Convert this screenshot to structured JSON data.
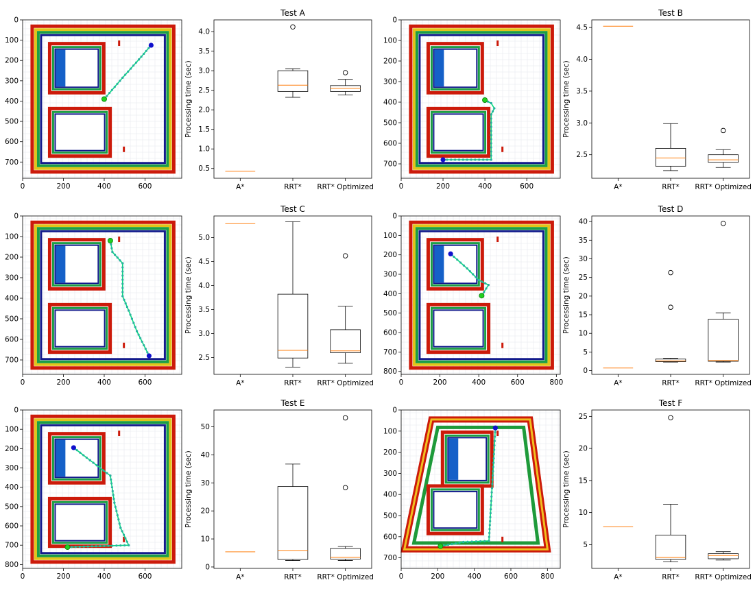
{
  "chart_data": [
    {
      "type": "box",
      "title": "Test A",
      "ylabel": "Processing time (sec)",
      "categories": [
        "A*",
        "RRT*",
        "RRT* Optimized"
      ],
      "ylim": [
        0.25,
        4.3
      ],
      "yticks": [
        0.5,
        1.0,
        1.5,
        2.0,
        2.5,
        3.0,
        3.5,
        4.0
      ],
      "ytick_labels": [
        "0.5",
        "1.0",
        "1.5",
        "2.0",
        "2.5",
        "3.0",
        "3.5",
        "4.0"
      ],
      "boxes": [
        {
          "min": 0.43,
          "q1": 0.43,
          "median": 0.43,
          "q3": 0.43,
          "max": 0.43,
          "outliers": []
        },
        {
          "min": 2.32,
          "q1": 2.47,
          "median": 2.63,
          "q3": 3.0,
          "max": 3.05,
          "outliers": [
            4.12
          ]
        },
        {
          "min": 2.38,
          "q1": 2.47,
          "median": 2.55,
          "q3": 2.62,
          "max": 2.78,
          "outliers": [
            2.95
          ]
        }
      ],
      "map": {
        "xticks": [
          0,
          200,
          400,
          600
        ],
        "yticks": [
          0,
          100,
          200,
          300,
          400,
          500,
          600,
          700
        ],
        "xlim": [
          0,
          780
        ],
        "ylim": [
          780,
          0
        ],
        "path": [
          [
            630,
            125
          ],
          [
            570,
            195
          ],
          [
            490,
            285
          ],
          [
            400,
            390
          ]
        ],
        "start": [
          630,
          125
        ],
        "goal": [
          400,
          390
        ]
      }
    },
    {
      "type": "box",
      "title": "Test B",
      "ylabel": "Processing time (sec)",
      "categories": [
        "A*",
        "RRT*",
        "RRT* Optimized"
      ],
      "ylim": [
        2.13,
        4.62
      ],
      "yticks": [
        2.5,
        3.0,
        3.5,
        4.0,
        4.5
      ],
      "ytick_labels": [
        "2.5",
        "3.0",
        "3.5",
        "4.0",
        "4.5"
      ],
      "boxes": [
        {
          "min": 4.52,
          "q1": 4.52,
          "median": 4.52,
          "q3": 4.52,
          "max": 4.52,
          "outliers": []
        },
        {
          "min": 2.25,
          "q1": 2.32,
          "median": 2.45,
          "q3": 2.6,
          "max": 2.99,
          "outliers": []
        },
        {
          "min": 2.3,
          "q1": 2.38,
          "median": 2.42,
          "q3": 2.5,
          "max": 2.58,
          "outliers": [
            2.88
          ]
        }
      ],
      "map": {
        "xticks": [
          0,
          200,
          400,
          600
        ],
        "yticks": [
          0,
          100,
          200,
          300,
          400,
          500,
          600,
          700
        ],
        "xlim": [
          0,
          760
        ],
        "ylim": [
          770,
          0
        ],
        "path": [
          [
            400,
            390
          ],
          [
            430,
            405
          ],
          [
            445,
            430
          ],
          [
            430,
            460
          ],
          [
            430,
            560
          ],
          [
            430,
            680
          ],
          [
            200,
            680
          ]
        ],
        "start": [
          200,
          680
        ],
        "goal": [
          400,
          390
        ]
      }
    },
    {
      "type": "box",
      "title": "Test C",
      "ylabel": "Processing time (sec)",
      "categories": [
        "A*",
        "RRT*",
        "RRT* Optimized"
      ],
      "ylim": [
        2.15,
        5.45
      ],
      "yticks": [
        2.5,
        3.0,
        3.5,
        4.0,
        4.5,
        5.0
      ],
      "ytick_labels": [
        "2.5",
        "3.0",
        "3.5",
        "4.0",
        "4.5",
        "5.0"
      ],
      "boxes": [
        {
          "min": 5.3,
          "q1": 5.3,
          "median": 5.3,
          "q3": 5.3,
          "max": 5.3,
          "outliers": []
        },
        {
          "min": 2.3,
          "q1": 2.49,
          "median": 2.65,
          "q3": 3.82,
          "max": 5.33,
          "outliers": []
        },
        {
          "min": 2.38,
          "q1": 2.6,
          "median": 2.64,
          "q3": 3.08,
          "max": 3.57,
          "outliers": [
            4.62
          ]
        }
      ],
      "map": {
        "xticks": [
          0,
          200,
          400,
          600
        ],
        "yticks": [
          0,
          100,
          200,
          300,
          400,
          500,
          600,
          700
        ],
        "xlim": [
          0,
          780
        ],
        "ylim": [
          770,
          0
        ],
        "path": [
          [
            430,
            120
          ],
          [
            440,
            175
          ],
          [
            490,
            230
          ],
          [
            490,
            390
          ],
          [
            520,
            460
          ],
          [
            560,
            560
          ],
          [
            620,
            680
          ]
        ],
        "start": [
          620,
          680
        ],
        "goal": [
          430,
          120
        ]
      }
    },
    {
      "type": "box",
      "title": "Test D",
      "ylabel": "Processing time (sec)",
      "categories": [
        "A*",
        "RRT*",
        "RRT* Optimized"
      ],
      "ylim": [
        -1,
        41.5
      ],
      "yticks": [
        0,
        5,
        10,
        15,
        20,
        25,
        30,
        35,
        40
      ],
      "ytick_labels": [
        "0",
        "5",
        "10",
        "15",
        "20",
        "25",
        "30",
        "35",
        "40"
      ],
      "boxes": [
        {
          "min": 0.7,
          "q1": 0.7,
          "median": 0.7,
          "q3": 0.7,
          "max": 0.7,
          "outliers": []
        },
        {
          "min": 2.3,
          "q1": 2.4,
          "median": 2.6,
          "q3": 3.1,
          "max": 3.3,
          "outliers": [
            17.0,
            26.3
          ]
        },
        {
          "min": 2.3,
          "q1": 2.5,
          "median": 2.7,
          "q3": 13.8,
          "max": 15.5,
          "outliers": [
            39.5
          ]
        }
      ],
      "map": {
        "xticks": [
          0,
          200,
          400,
          600,
          800
        ],
        "yticks": [
          0,
          100,
          200,
          300,
          400,
          500,
          600,
          700,
          800
        ],
        "xlim": [
          0,
          820
        ],
        "ylim": [
          815,
          0
        ],
        "path": [
          [
            255,
            195
          ],
          [
            340,
            270
          ],
          [
            400,
            330
          ],
          [
            450,
            355
          ],
          [
            415,
            410
          ]
        ],
        "start": [
          255,
          195
        ],
        "goal": [
          415,
          410
        ]
      }
    },
    {
      "type": "box",
      "title": "Test E",
      "ylabel": "Processing time (sec)",
      "categories": [
        "A*",
        "RRT*",
        "RRT* Optimized"
      ],
      "ylim": [
        -0.5,
        56
      ],
      "yticks": [
        0,
        10,
        20,
        30,
        40,
        50
      ],
      "ytick_labels": [
        "0",
        "10",
        "20",
        "30",
        "40",
        "50"
      ],
      "boxes": [
        {
          "min": 5.4,
          "q1": 5.4,
          "median": 5.4,
          "q3": 5.4,
          "max": 5.4,
          "outliers": []
        },
        {
          "min": 2.3,
          "q1": 2.7,
          "median": 5.9,
          "q3": 28.7,
          "max": 36.7,
          "outliers": []
        },
        {
          "min": 2.3,
          "q1": 2.8,
          "median": 3.4,
          "q3": 6.6,
          "max": 7.3,
          "outliers": [
            28.3,
            53.2
          ]
        }
      ],
      "map": {
        "xticks": [
          0,
          200,
          400,
          600
        ],
        "yticks": [
          0,
          100,
          200,
          300,
          400,
          500,
          600,
          700,
          800
        ],
        "xlim": [
          0,
          780
        ],
        "ylim": [
          820,
          0
        ],
        "path": [
          [
            250,
            195
          ],
          [
            330,
            260
          ],
          [
            430,
            340
          ],
          [
            450,
            480
          ],
          [
            480,
            610
          ],
          [
            520,
            700
          ],
          [
            220,
            710
          ]
        ],
        "start": [
          250,
          195
        ],
        "goal": [
          220,
          710
        ]
      }
    },
    {
      "type": "box",
      "title": "Test F",
      "ylabel": "Processing time (sec)",
      "categories": [
        "A*",
        "RRT*",
        "RRT* Optimized"
      ],
      "ylim": [
        1.3,
        26
      ],
      "yticks": [
        5,
        10,
        15,
        20,
        25
      ],
      "ytick_labels": [
        "5",
        "10",
        "15",
        "20",
        "25"
      ],
      "boxes": [
        {
          "min": 7.8,
          "q1": 7.8,
          "median": 7.8,
          "q3": 7.8,
          "max": 7.8,
          "outliers": []
        },
        {
          "min": 2.3,
          "q1": 2.7,
          "median": 3.0,
          "q3": 6.5,
          "max": 11.3,
          "outliers": [
            24.8
          ]
        },
        {
          "min": 2.6,
          "q1": 2.8,
          "median": 3.3,
          "q3": 3.6,
          "max": 3.9,
          "outliers": []
        }
      ],
      "map": {
        "xticks": [
          0,
          200,
          400,
          600,
          800
        ],
        "yticks": [
          0,
          100,
          200,
          300,
          400,
          500,
          600,
          700
        ],
        "xlim": [
          0,
          870
        ],
        "ylim": [
          750,
          0
        ],
        "path": [
          [
            515,
            85
          ],
          [
            505,
            250
          ],
          [
            490,
            470
          ],
          [
            480,
            620
          ],
          [
            340,
            625
          ],
          [
            215,
            645
          ]
        ],
        "start": [
          515,
          85
        ],
        "goal": [
          215,
          645
        ]
      }
    }
  ],
  "colors": {
    "median": "#ff7f0e",
    "path": "#00e07a",
    "start": "#20d020",
    "goal": "#1010cc",
    "wall_outer": "#cc1a0a",
    "wall_inner": "#121a8c"
  }
}
